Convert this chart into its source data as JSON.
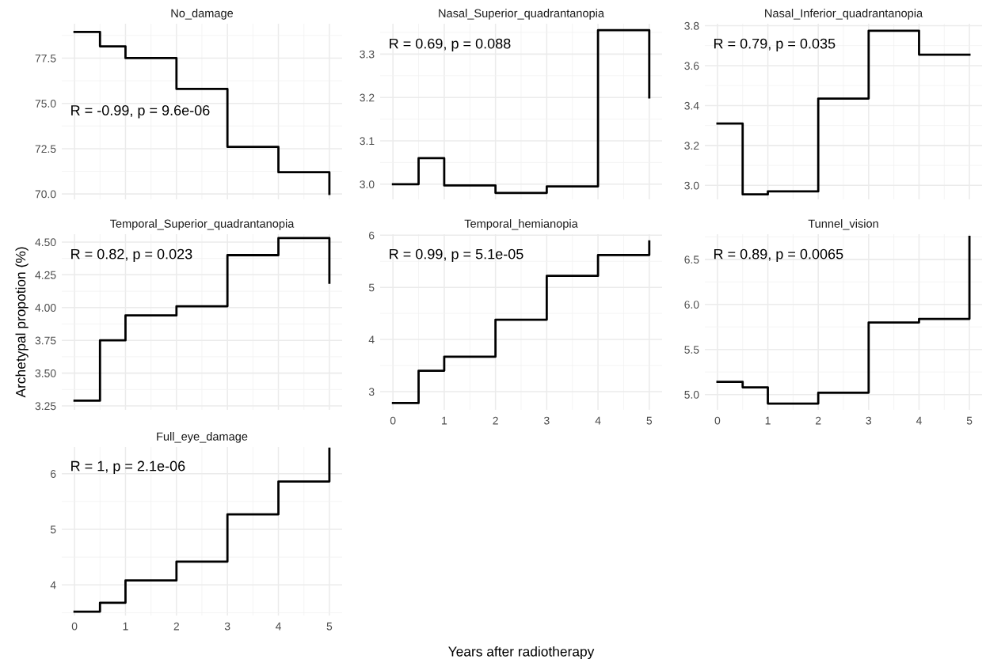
{
  "chart_data": [
    {
      "type": "step",
      "title": "No_damage",
      "x": [
        0,
        0.5,
        1,
        2,
        3,
        4,
        5
      ],
      "series": [
        {
          "color": "#000000",
          "values": [
            78.95,
            78.15,
            77.5,
            75.8,
            72.6,
            71.2,
            70.0
          ]
        }
      ],
      "xlim": [
        -0.25,
        5.25
      ],
      "xticks": [
        0,
        1,
        2,
        3,
        4,
        5
      ],
      "ylim": [
        69.7,
        79.4
      ],
      "yticks": [
        {
          "value": 70,
          "label": "70.0"
        },
        72.5,
        {
          "value": 75,
          "label": "75.0"
        },
        77.5
      ],
      "tick_labels": "y",
      "grid": true,
      "annotations": [
        "R = -0.99, p = 9.6e-06"
      ]
    },
    {
      "type": "step",
      "title": "Nasal_Superior_quadrantanopia",
      "x": [
        0,
        0.5,
        1,
        2,
        3,
        4,
        5
      ],
      "series": [
        {
          "color": "#000000",
          "values": [
            3.0,
            3.06,
            2.997,
            2.98,
            2.995,
            3.355,
            3.2
          ]
        }
      ],
      "xlim": [
        -0.25,
        5.25
      ],
      "xticks": [
        0,
        1,
        2,
        3,
        4,
        5
      ],
      "ylim": [
        2.965,
        3.37
      ],
      "yticks": [
        {
          "value": 3,
          "label": "3.0"
        },
        3.1,
        3.2,
        3.3
      ],
      "tick_labels": "y",
      "grid": true,
      "annotations": [
        "R = 0.69, p = 0.088"
      ]
    },
    {
      "type": "step",
      "title": "Nasal_Inferior_quadrantanopia",
      "x": [
        0,
        0.5,
        1,
        2,
        3,
        4,
        5
      ],
      "series": [
        {
          "color": "#000000",
          "values": [
            3.31,
            2.955,
            2.97,
            3.435,
            3.775,
            3.655,
            3.655
          ]
        }
      ],
      "xlim": [
        -0.25,
        5.25
      ],
      "xticks": [
        0,
        1,
        2,
        3,
        4,
        5
      ],
      "ylim": [
        2.93,
        3.81
      ],
      "yticks": [
        {
          "value": 3,
          "label": "3.0"
        },
        3.2,
        3.4,
        3.6,
        3.8
      ],
      "tick_labels": "y",
      "grid": true,
      "annotations": [
        "R = 0.79, p = 0.035"
      ]
    },
    {
      "type": "step",
      "title": "Temporal_Superior_quadrantanopia",
      "ylabel": "Archetypal propotion (%)",
      "x": [
        0,
        0.5,
        1,
        2,
        3,
        4,
        5
      ],
      "series": [
        {
          "color": "#000000",
          "values": [
            3.29,
            3.75,
            3.94,
            4.01,
            4.4,
            4.53,
            4.19
          ]
        }
      ],
      "xlim": [
        -0.25,
        5.25
      ],
      "xticks": [
        0,
        1,
        2,
        3,
        4,
        5
      ],
      "ylim": [
        3.22,
        4.56
      ],
      "yticks": [
        3.25,
        {
          "value": 3.5,
          "label": "3.50"
        },
        3.75,
        {
          "value": 4,
          "label": "4.00"
        },
        4.25,
        {
          "value": 4.5,
          "label": "4.50"
        }
      ],
      "tick_labels": "y",
      "grid": true,
      "annotations": [
        "R = 0.82, p = 0.023"
      ]
    },
    {
      "type": "step",
      "title": "Temporal_hemianopia",
      "xlabel": "Years after radiotherapy",
      "x": [
        0,
        0.5,
        1,
        2,
        3,
        4,
        5
      ],
      "series": [
        {
          "color": "#000000",
          "values": [
            2.78,
            3.4,
            3.67,
            4.38,
            5.22,
            5.62,
            5.88
          ]
        }
      ],
      "xlim": [
        -0.25,
        5.25
      ],
      "xticks": [
        0,
        1,
        2,
        3,
        4,
        5
      ],
      "ylim": [
        2.65,
        6.02
      ],
      "yticks": [
        3,
        4,
        5,
        6
      ],
      "grid": true,
      "annotations": [
        "R = 0.99, p = 5.1e-05"
      ]
    },
    {
      "type": "step",
      "title": "Tunnel_vision",
      "x": [
        0,
        0.5,
        1,
        2,
        3,
        4,
        5
      ],
      "series": [
        {
          "color": "#000000",
          "values": [
            5.14,
            5.08,
            4.9,
            5.02,
            5.8,
            5.84,
            6.75
          ]
        }
      ],
      "xlim": [
        -0.25,
        5.25
      ],
      "xticks": [
        0,
        1,
        2,
        3,
        4,
        5
      ],
      "ylim": [
        4.83,
        6.78
      ],
      "yticks": [
        {
          "value": 5,
          "label": "5.0"
        },
        5.5,
        {
          "value": 6,
          "label": "6.0"
        },
        6.5
      ],
      "grid": true,
      "annotations": [
        "R = 0.89, p = 0.0065"
      ]
    },
    {
      "type": "step",
      "title": "Full_eye_damage",
      "x": [
        0,
        0.5,
        1,
        2,
        3,
        4,
        5
      ],
      "series": [
        {
          "color": "#000000",
          "values": [
            3.52,
            3.68,
            4.08,
            4.42,
            5.27,
            5.86,
            6.45
          ]
        }
      ],
      "xlim": [
        -0.25,
        5.25
      ],
      "xticks": [
        0,
        1,
        2,
        3,
        4,
        5
      ],
      "ylim": [
        3.45,
        6.48
      ],
      "yticks": [
        4,
        5,
        6
      ],
      "grid": true,
      "annotations": [
        "R = 1, p = 2.1e-06"
      ]
    }
  ]
}
